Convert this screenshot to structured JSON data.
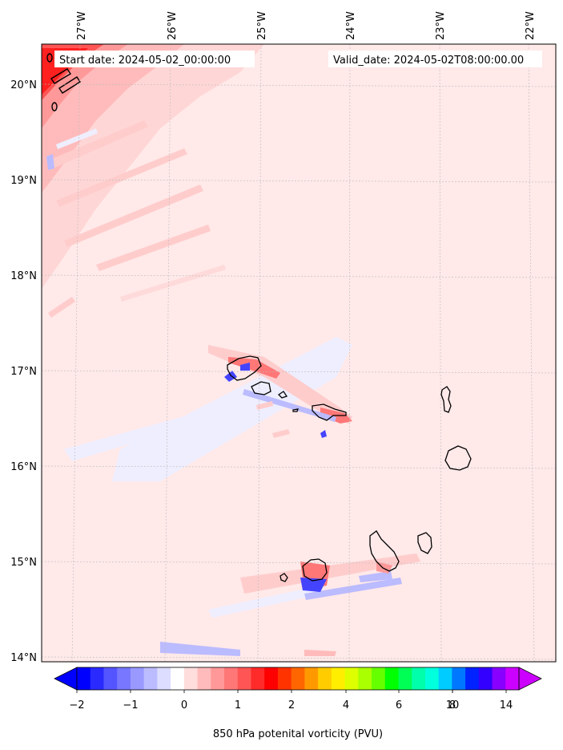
{
  "annotations": {
    "start_date": "Start date: 2024-05-02_00:00:00",
    "valid_date": "Valid_date: 2024-05-02T08:00:00.00"
  },
  "longitude_labels": [
    "27°W",
    "26°W",
    "25°W",
    "24°W",
    "23°W",
    "22°W"
  ],
  "latitude_labels": [
    "20°N",
    "19°N",
    "18°N",
    "17°N",
    "16°N",
    "15°N",
    "14°N"
  ],
  "colorbar": {
    "label": "850 hPa potenital vorticity (PVU)",
    "tick_labels": [
      "−2",
      "−1",
      "0",
      "1",
      "2",
      "4",
      "6",
      "8",
      "10",
      "14"
    ],
    "colors": [
      "#0000ff",
      "#2a2aff",
      "#5555ff",
      "#7777ff",
      "#9999ff",
      "#bbbbff",
      "#ddddff",
      "#ffffff",
      "#ffdddd",
      "#ffbbbb",
      "#ff9999",
      "#ff7777",
      "#ff5555",
      "#ff2a2a",
      "#ff0000",
      "#ff3300",
      "#ff6600",
      "#ff9900",
      "#ffcc00",
      "#ffee00",
      "#ddff00",
      "#aaff00",
      "#66ff00",
      "#00ff00",
      "#00ff55",
      "#00ffaa",
      "#00ffdd",
      "#00ccff",
      "#0077ff",
      "#0022ff",
      "#3300ff",
      "#8800ff",
      "#cc00ff"
    ],
    "extend_low_color": "#0000ff",
    "extend_high_color": "#cc00ff"
  },
  "colors": {
    "background_field": "#ffe9e9",
    "positive_weak": "#ffcccc",
    "positive_strong": "#ff2020",
    "negative_weak": "#eeeeff",
    "negative_strong": "#4444ff",
    "coastline": "#000000"
  }
}
